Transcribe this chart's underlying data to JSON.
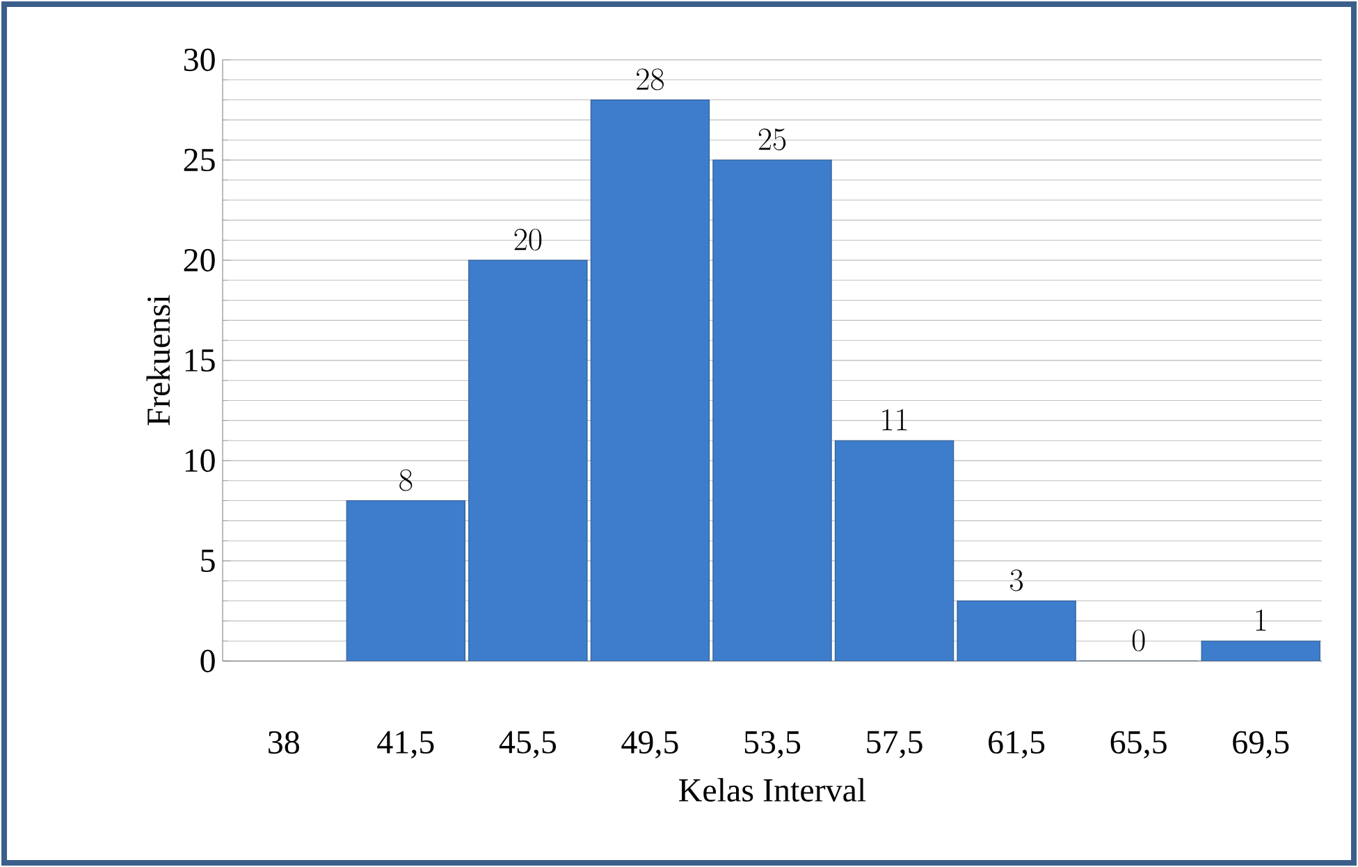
{
  "chart_data": {
    "type": "bar",
    "xlabel": "Kelas Interval",
    "ylabel": "Frekuensi",
    "categories": [
      "38",
      "41,5",
      "45,5",
      "49,5",
      "53,5",
      "57,5",
      "61,5",
      "65,5",
      "69,5"
    ],
    "values": [
      null,
      8,
      20,
      28,
      25,
      11,
      3,
      0,
      1
    ],
    "color": "#3d7dcc",
    "ylim": [
      0,
      30
    ],
    "yticks": [
      0,
      5,
      10,
      15,
      20,
      25,
      30
    ],
    "grid": "y",
    "data_labels": true
  }
}
